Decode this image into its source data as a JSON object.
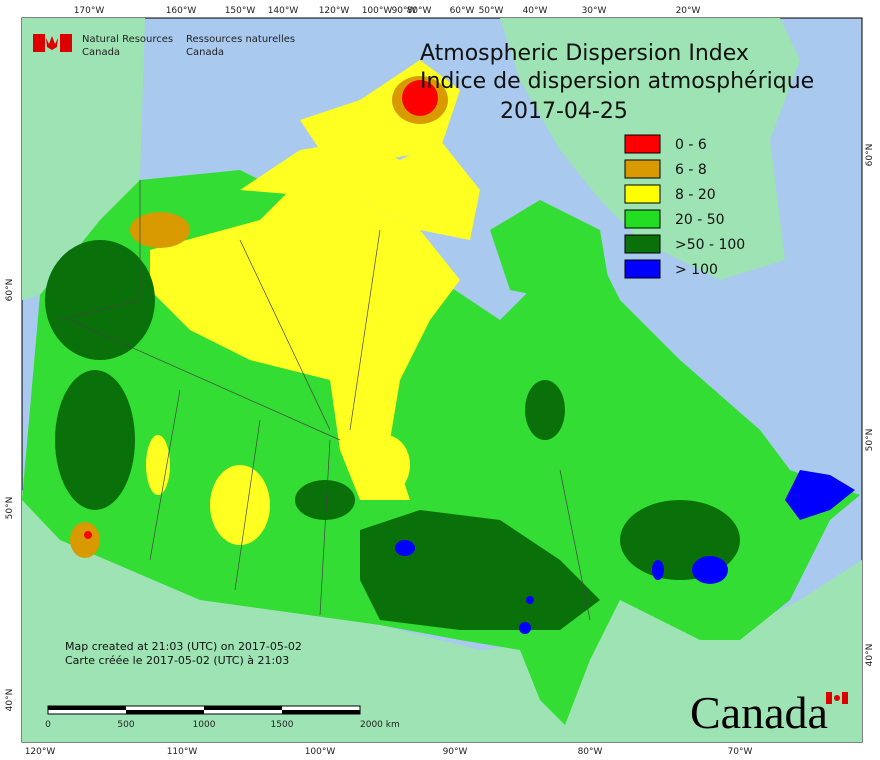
{
  "header": {
    "agency_en": [
      "Natural Resources",
      "Canada"
    ],
    "agency_fr": [
      "Ressources naturelles",
      "Canada"
    ]
  },
  "title": {
    "en": "Atmospheric Dispersion Index",
    "fr": "Indice de dispersion atmosphérique",
    "date": "2017-04-25"
  },
  "legend": [
    {
      "label": "0 - 6",
      "color": "#ff0000"
    },
    {
      "label": "6 - 8",
      "color": "#d99a00"
    },
    {
      "label": "8 - 20",
      "color": "#ffff00"
    },
    {
      "label": "20 - 50",
      "color": "#22dd22"
    },
    {
      "label": ">50 - 100",
      "color": "#0a700a"
    },
    {
      "label": "> 100",
      "color": "#0000ff"
    }
  ],
  "graticule": {
    "top": [
      "170°W",
      "160°W",
      "150°W",
      "140°W",
      "120°W",
      "100°W",
      "90°W",
      "80°W",
      "60°W",
      "50°W",
      "40°W",
      "30°W",
      "20°W"
    ],
    "bottom": [
      "120°W",
      "110°W",
      "100°W",
      "90°W",
      "80°W",
      "70°W"
    ],
    "left": [
      "60°N",
      "50°N",
      "40°N"
    ],
    "right": [
      "60°N",
      "50°N",
      "40°N"
    ]
  },
  "notes": [
    "Map created at 21:03 (UTC) on 2017-05-02",
    "Carte créée le 2017-05-02 (UTC) à 21:03"
  ],
  "scale": [
    "0",
    "500",
    "1000",
    "1500",
    "2000 km"
  ],
  "wordmark": "Canada"
}
